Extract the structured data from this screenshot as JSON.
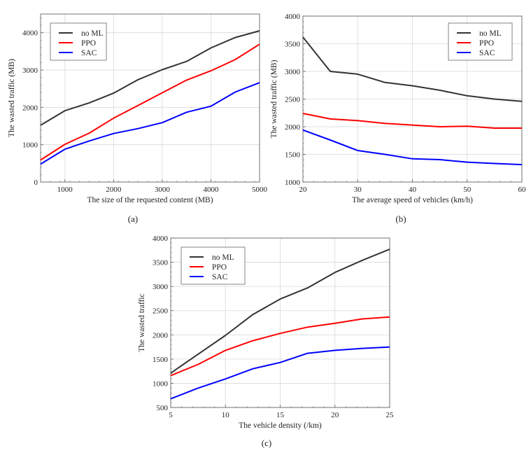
{
  "chart_data": [
    {
      "type": "line",
      "caption": "(a)",
      "xlabel": "The size of the requested content (MB)",
      "ylabel": "The wasted traffic (MB)",
      "xlim": [
        500,
        5000
      ],
      "ylim": [
        0,
        4500
      ],
      "xticks": [
        1000,
        2000,
        3000,
        4000,
        5000
      ],
      "yticks": [
        0,
        1000,
        2000,
        3000,
        4000
      ],
      "grid": true,
      "legend_position": "top-left",
      "x": [
        500,
        1000,
        1500,
        2000,
        2500,
        3000,
        3500,
        4000,
        4500,
        5000
      ],
      "series": [
        {
          "name": "no ML",
          "color": "#333333",
          "values": [
            1520,
            1910,
            2120,
            2380,
            2740,
            3010,
            3230,
            3590,
            3870,
            4050
          ]
        },
        {
          "name": "PPO",
          "color": "#ff0000",
          "values": [
            590,
            1010,
            1310,
            1710,
            2050,
            2390,
            2730,
            2980,
            3280,
            3690
          ]
        },
        {
          "name": "SAC",
          "color": "#0000ff",
          "values": [
            480,
            880,
            1100,
            1300,
            1430,
            1590,
            1870,
            2030,
            2410,
            2660
          ]
        }
      ]
    },
    {
      "type": "line",
      "caption": "(b)",
      "xlabel": "The average speed of vehicles (km/h)",
      "ylabel": "The wasted traffic (MB)",
      "xlim": [
        20,
        60
      ],
      "ylim": [
        1000,
        4000
      ],
      "xticks": [
        20,
        30,
        40,
        50,
        60
      ],
      "yticks": [
        1000,
        1500,
        2000,
        2500,
        3000,
        3500,
        4000
      ],
      "grid": true,
      "legend_position": "top-right",
      "x": [
        20,
        25,
        30,
        35,
        40,
        45,
        50,
        55,
        60
      ],
      "series": [
        {
          "name": "no ML",
          "color": "#333333",
          "values": [
            3620,
            3000,
            2950,
            2800,
            2740,
            2660,
            2560,
            2500,
            2460
          ]
        },
        {
          "name": "PPO",
          "color": "#ff0000",
          "values": [
            2240,
            2140,
            2110,
            2060,
            2030,
            2000,
            2010,
            1975,
            1975
          ]
        },
        {
          "name": "SAC",
          "color": "#0000ff",
          "values": [
            1940,
            1760,
            1570,
            1500,
            1420,
            1405,
            1360,
            1335,
            1315
          ]
        }
      ]
    },
    {
      "type": "line",
      "caption": "(c)",
      "xlabel": "The vehicle density (/km)",
      "ylabel": "The wasted traffic",
      "xlim": [
        5,
        25
      ],
      "ylim": [
        500,
        4000
      ],
      "xticks": [
        5,
        10,
        15,
        20,
        25
      ],
      "yticks": [
        500,
        1000,
        1500,
        2000,
        2500,
        3000,
        3500,
        4000
      ],
      "grid": true,
      "legend_position": "top-left",
      "x": [
        5,
        7.5,
        10,
        12.5,
        15,
        17.5,
        20,
        22.5,
        25
      ],
      "series": [
        {
          "name": "no ML",
          "color": "#333333",
          "values": [
            1210,
            1600,
            1990,
            2420,
            2740,
            2970,
            3290,
            3540,
            3770
          ]
        },
        {
          "name": "PPO",
          "color": "#ff0000",
          "values": [
            1160,
            1390,
            1680,
            1880,
            2030,
            2160,
            2240,
            2330,
            2370
          ]
        },
        {
          "name": "SAC",
          "color": "#0000ff",
          "values": [
            680,
            900,
            1090,
            1300,
            1430,
            1620,
            1680,
            1720,
            1750
          ]
        }
      ]
    }
  ]
}
